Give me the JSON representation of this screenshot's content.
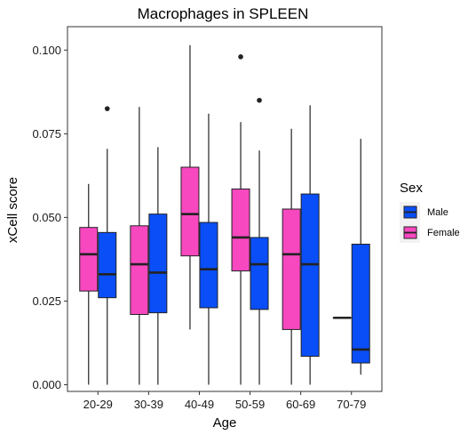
{
  "chart_data": {
    "type": "boxplot",
    "title": "Macrophages in SPLEEN",
    "xlabel": "Age",
    "ylabel": "xCell score",
    "ylim": [
      -0.002,
      0.107
    ],
    "yticks": [
      "0.000",
      "0.025",
      "0.050",
      "0.075",
      "0.100"
    ],
    "ytick_values": [
      0,
      0.025,
      0.05,
      0.075,
      0.1
    ],
    "grid": false,
    "legend": {
      "title": "Sex",
      "position": "right",
      "items": [
        {
          "label": "Male",
          "color": "#0a4ef7"
        },
        {
          "label": "Female",
          "color": "#f748c0"
        }
      ]
    },
    "categories": [
      "20-29",
      "30-39",
      "40-49",
      "50-59",
      "60-69",
      "70-79"
    ],
    "series": [
      {
        "name": "Female",
        "color": "#f748c0",
        "boxes": [
          {
            "category": "20-29",
            "min": 0.0,
            "q1": 0.028,
            "median": 0.039,
            "q3": 0.047,
            "max": 0.06,
            "outliers": []
          },
          {
            "category": "30-39",
            "min": 0.0,
            "q1": 0.021,
            "median": 0.036,
            "q3": 0.0475,
            "max": 0.083,
            "outliers": []
          },
          {
            "category": "40-49",
            "min": 0.0165,
            "q1": 0.0385,
            "median": 0.051,
            "q3": 0.065,
            "max": 0.1015,
            "outliers": []
          },
          {
            "category": "50-59",
            "min": 0.0,
            "q1": 0.034,
            "median": 0.044,
            "q3": 0.0585,
            "max": 0.0785,
            "outliers": [
              0.098
            ]
          },
          {
            "category": "60-69",
            "min": 0.0,
            "q1": 0.0165,
            "median": 0.039,
            "q3": 0.0525,
            "max": 0.0765,
            "outliers": []
          },
          {
            "category": "70-79",
            "min": 0.02,
            "q1": 0.02,
            "median": 0.02,
            "q3": 0.02,
            "max": 0.02,
            "outliers": []
          }
        ]
      },
      {
        "name": "Male",
        "color": "#0a4ef7",
        "boxes": [
          {
            "category": "20-29",
            "min": 0.0,
            "q1": 0.026,
            "median": 0.033,
            "q3": 0.0455,
            "max": 0.0705,
            "outliers": [
              0.0825
            ]
          },
          {
            "category": "30-39",
            "min": 0.0,
            "q1": 0.0215,
            "median": 0.0335,
            "q3": 0.051,
            "max": 0.071,
            "outliers": []
          },
          {
            "category": "40-49",
            "min": 0.0,
            "q1": 0.023,
            "median": 0.0345,
            "q3": 0.0485,
            "max": 0.081,
            "outliers": []
          },
          {
            "category": "50-59",
            "min": 0.0,
            "q1": 0.0225,
            "median": 0.036,
            "q3": 0.044,
            "max": 0.07,
            "outliers": [
              0.085
            ]
          },
          {
            "category": "60-69",
            "min": 0.0,
            "q1": 0.0085,
            "median": 0.036,
            "q3": 0.057,
            "max": 0.0835,
            "outliers": []
          },
          {
            "category": "70-79",
            "min": 0.003,
            "q1": 0.0065,
            "median": 0.0105,
            "q3": 0.042,
            "max": 0.0735,
            "outliers": []
          }
        ]
      }
    ]
  }
}
